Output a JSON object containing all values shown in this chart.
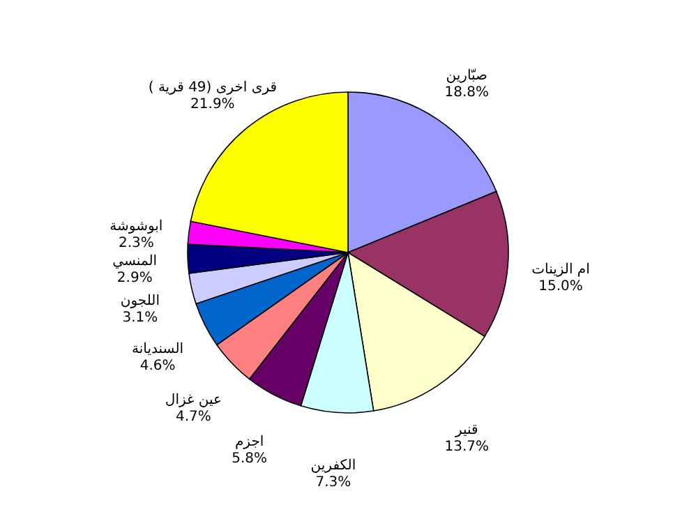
{
  "chart_data": {
    "type": "pie",
    "categories": [
      "صبّارين",
      "ام الزينات",
      "قنير",
      "الكفرين",
      "اجزم",
      "عين غزال",
      "السنديانة",
      "اللجون",
      "المنسي",
      "ابوشوشة",
      "قرى اخرى (49 قرية )"
    ],
    "values": [
      18.8,
      15.0,
      13.7,
      7.3,
      5.8,
      4.7,
      4.6,
      3.1,
      2.9,
      2.3,
      21.9
    ],
    "value_labels": [
      "18.8%",
      "15.0%",
      "13.7%",
      "7.3%",
      "5.8%",
      "4.7%",
      "4.6%",
      "3.1%",
      "2.9%",
      "2.3%",
      "21.9%"
    ],
    "colors": [
      "#9999ff",
      "#993366",
      "#ffffcc",
      "#ccffff",
      "#660066",
      "#ff8080",
      "#0066cc",
      "#ccccff",
      "#000080",
      "#ff00ff",
      "#ffff00"
    ]
  }
}
